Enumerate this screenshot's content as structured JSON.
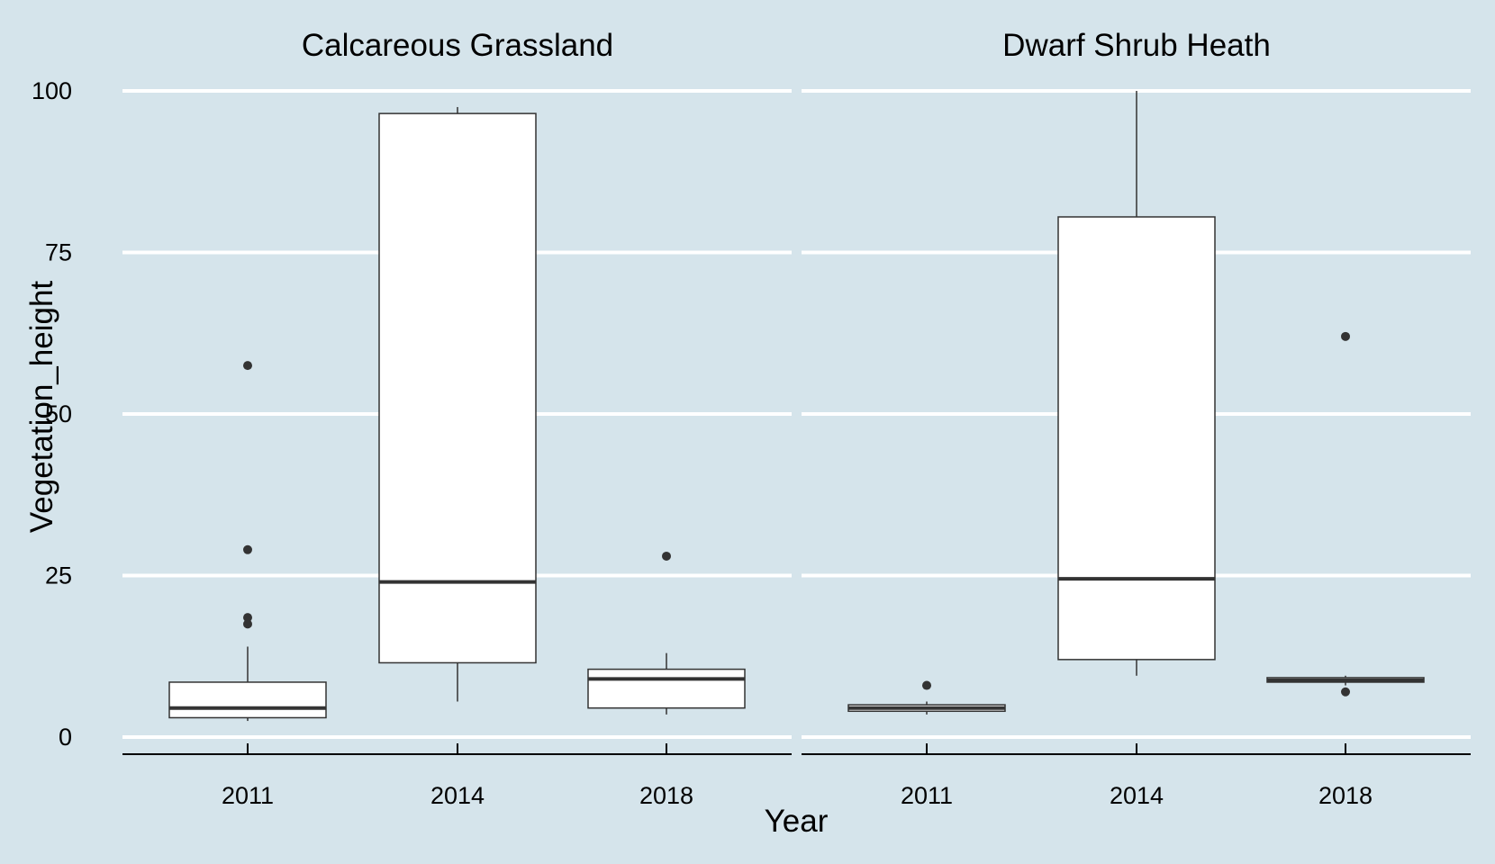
{
  "chart_data": {
    "type": "boxplot",
    "xlabel": "Year",
    "ylabel": "Vegetation_height",
    "ylim": [
      0,
      100
    ],
    "yticks": [
      0,
      25,
      50,
      75,
      100
    ],
    "categories": [
      "2011",
      "2014",
      "2018"
    ],
    "grid": "horizontal major lines, white",
    "background": "#d5e4eb",
    "facets": [
      {
        "title": "Calcareous Grassland",
        "boxes": [
          {
            "category": "2011",
            "whisker_low": 2.5,
            "q1": 3.0,
            "median": 4.5,
            "q3": 8.5,
            "whisker_high": 14.0,
            "outliers": [
              17.5,
              18.5,
              29.0,
              57.5
            ]
          },
          {
            "category": "2014",
            "whisker_low": 5.5,
            "q1": 11.5,
            "median": 24.0,
            "q3": 96.5,
            "whisker_high": 97.5,
            "outliers": []
          },
          {
            "category": "2018",
            "whisker_low": 3.5,
            "q1": 4.5,
            "median": 9.0,
            "q3": 10.5,
            "whisker_high": 13.0,
            "outliers": [
              28.0
            ]
          }
        ]
      },
      {
        "title": "Dwarf Shrub Heath",
        "boxes": [
          {
            "category": "2011",
            "whisker_low": 3.5,
            "q1": 4.0,
            "median": 4.5,
            "q3": 5.0,
            "whisker_high": 5.5,
            "outliers": [
              8.0
            ]
          },
          {
            "category": "2014",
            "whisker_low": 9.5,
            "q1": 12.0,
            "median": 24.5,
            "q3": 80.5,
            "whisker_high": 100.0,
            "outliers": []
          },
          {
            "category": "2018",
            "whisker_low": 8.0,
            "q1": 8.5,
            "median": 8.8,
            "q3": 9.2,
            "whisker_high": 9.5,
            "outliers": [
              7.0,
              62.0
            ]
          }
        ]
      }
    ]
  }
}
